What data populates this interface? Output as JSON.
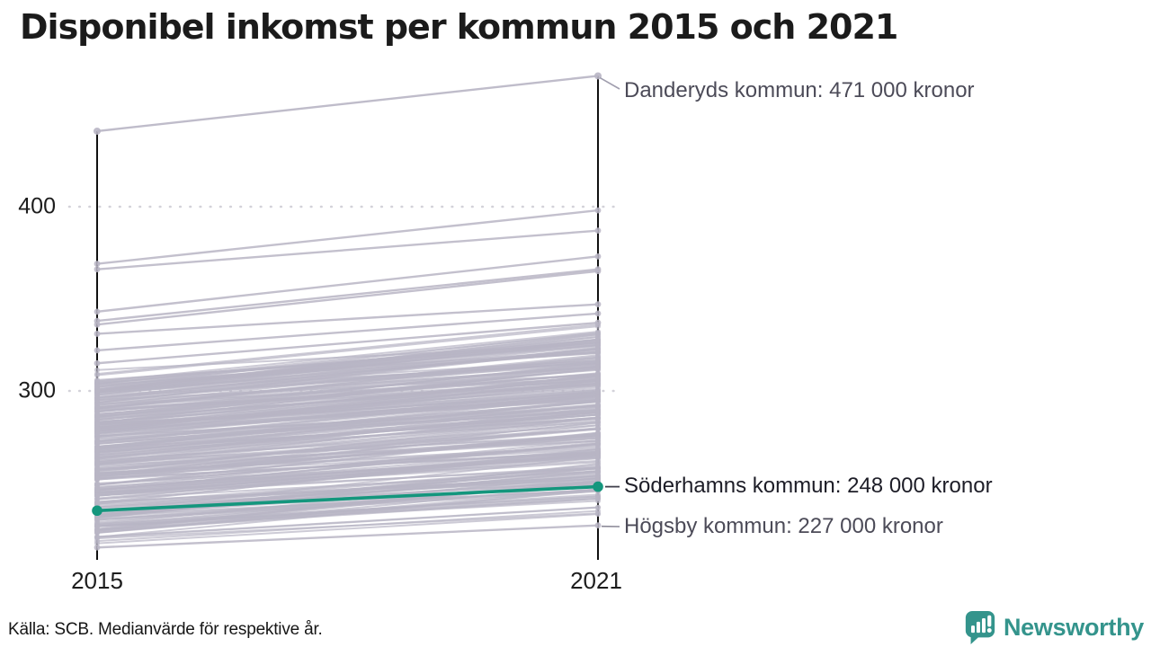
{
  "title": "Disponibel inkomst per kommun 2015 och 2021",
  "footer": {
    "source": "Källa: SCB. Medianvärde för respektive år."
  },
  "logo": {
    "name": "Newsworthy",
    "color": "#34948c"
  },
  "chart_data": {
    "type": "line",
    "variant": "slope",
    "title": "Disponibel inkomst per kommun 2015 och 2021",
    "x_categories": [
      "2015",
      "2021"
    ],
    "y_ticks": [
      300,
      400
    ],
    "unit": "tusen kronor",
    "grid": "dotted horizontal at y ticks",
    "colors": {
      "highlight": "#14967d",
      "background_line": "#b8b5c4",
      "axis": "#111111"
    },
    "highlight_series": {
      "name": "Söderhamns kommun",
      "values": [
        235,
        248
      ],
      "label": "Söderhamns kommun: 248 000 kronor"
    },
    "labeled_series": [
      {
        "name": "Danderyds kommun",
        "values": [
          441,
          471
        ],
        "label": "Danderyds kommun: 471 000 kronor"
      },
      {
        "name": "Högsby kommun",
        "values": [
          215,
          227
        ],
        "label": "Högsby kommun: 227 000 kronor"
      }
    ],
    "unlabeled_series_estimated": [
      [
        369,
        398
      ],
      [
        366,
        387
      ],
      [
        343,
        373
      ],
      [
        338,
        366
      ],
      [
        336,
        365
      ],
      [
        331,
        347
      ],
      [
        322,
        342
      ],
      [
        315,
        337
      ]
    ],
    "background_bundle": {
      "count": 270,
      "v2015_range": [
        217,
        313
      ],
      "rise_range": [
        13,
        30
      ],
      "v2021_max": 336,
      "seed": 7
    }
  }
}
